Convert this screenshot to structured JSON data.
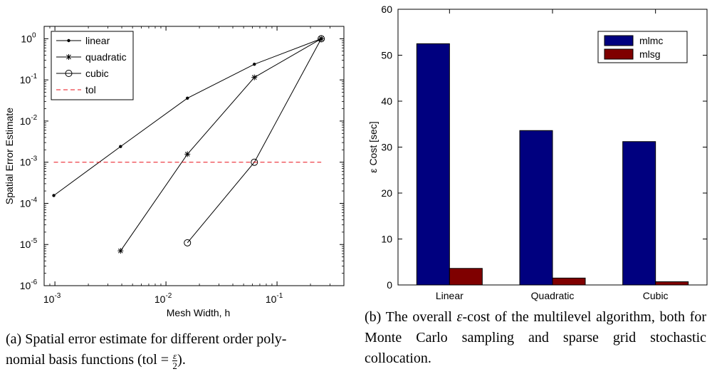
{
  "chart_data": [
    {
      "type": "line",
      "xlabel": "Mesh Width, h",
      "ylabel": "Spatial Error Estimate",
      "xscale": "log",
      "yscale": "log",
      "xlim": [
        0.0008,
        0.4
      ],
      "ylim": [
        1e-06,
        2
      ],
      "xticks": [
        0.001,
        0.01,
        0.1
      ],
      "xtick_labels": [
        [
          "10",
          "-3"
        ],
        [
          "10",
          "-2"
        ],
        [
          "10",
          "-1"
        ]
      ],
      "yticks": [
        1e-06,
        1e-05,
        0.0001,
        0.001,
        0.01,
        0.1,
        1
      ],
      "ytick_labels": [
        [
          "10",
          "-6"
        ],
        [
          "10",
          "-5"
        ],
        [
          "10",
          "-4"
        ],
        [
          "10",
          "-3"
        ],
        [
          "10",
          "-2"
        ],
        [
          "10",
          "-1"
        ],
        [
          "10",
          "0"
        ]
      ],
      "grid": false,
      "legend_position": "top-left",
      "series": [
        {
          "name": "linear",
          "marker": "dot",
          "color": "#000000",
          "x": [
            0.000977,
            0.0039,
            0.0156,
            0.0625,
            0.25
          ],
          "y": [
            0.000155,
            0.0024,
            0.036,
            0.24,
            1.0
          ]
        },
        {
          "name": "quadratic",
          "marker": "star",
          "color": "#000000",
          "x": [
            0.0039,
            0.0156,
            0.0625,
            0.25
          ],
          "y": [
            7e-06,
            0.00157,
            0.115,
            1.0
          ]
        },
        {
          "name": "cubic",
          "marker": "circle",
          "color": "#000000",
          "x": [
            0.0156,
            0.0625,
            0.25
          ],
          "y": [
            1.1e-05,
            0.001,
            1.0
          ]
        },
        {
          "name": "tol",
          "marker": "none",
          "color": "#e8111a",
          "dashed": true,
          "x": [
            0.000977,
            0.25
          ],
          "y": [
            0.001,
            0.001
          ]
        }
      ],
      "caption": {
        "label": "(a)",
        "line1": "Spatial error estimate for different order poly-",
        "line2_pre": "nomial basis functions (tol = ",
        "frac_num": "ε",
        "frac_den": "2",
        "line2_post": ")."
      }
    },
    {
      "type": "bar",
      "categories": [
        "Linear",
        "Quadratic",
        "Cubic"
      ],
      "ylabel": "ε Cost [sec]",
      "xlabel": "",
      "ylim": [
        0,
        60
      ],
      "yticks": [
        0,
        10,
        20,
        30,
        40,
        50,
        60
      ],
      "grid": false,
      "legend_position": "top-right",
      "series": [
        {
          "name": "mlmc",
          "color": "#00007f",
          "values": [
            52.5,
            33.6,
            31.2
          ]
        },
        {
          "name": "mlsg",
          "color": "#7f0000",
          "values": [
            3.6,
            1.5,
            0.7
          ]
        }
      ],
      "caption": {
        "label": "(b)",
        "pre": "The overall ",
        "eps": "ε",
        "post": "-cost of the multilevel algorithm, both for Monte Carlo sampling and sparse grid stochastic collocation."
      }
    }
  ]
}
